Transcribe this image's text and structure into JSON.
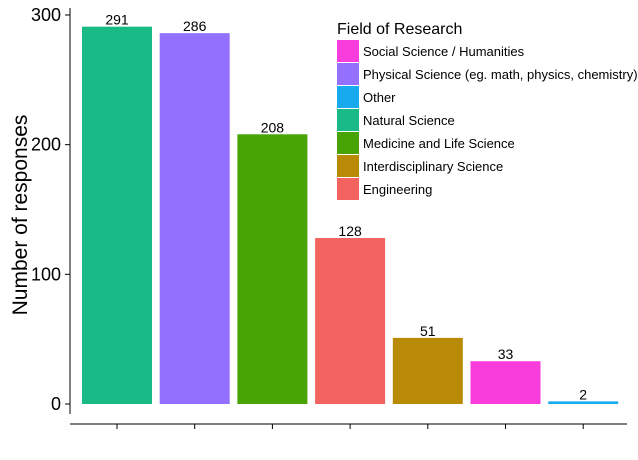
{
  "chart_data": {
    "type": "bar",
    "title": "",
    "xlabel": "",
    "ylabel": "Number of responses",
    "ylim": [
      0,
      300
    ],
    "yticks": [
      0,
      100,
      200,
      300
    ],
    "grid": false,
    "legend_title": "Field of Research",
    "legend_position": "top-right",
    "categories": [
      "Natural Science",
      "Physical Science (eg. math, physics, chemistry)",
      "Medicine and Life Science",
      "Engineering",
      "Interdisciplinary Science",
      "Social Science / Humanities",
      "Other"
    ],
    "values": [
      291,
      286,
      208,
      128,
      51,
      33,
      2
    ],
    "colors": [
      "#1aba87",
      "#9370fd",
      "#48a404",
      "#f36460",
      "#b98a05",
      "#f93ddd",
      "#18aaef"
    ],
    "data_labels": [
      "291",
      "286",
      "208",
      "128",
      "51",
      "33",
      "2"
    ],
    "legend": [
      {
        "label": "Social Science / Humanities",
        "color": "#f93ddd"
      },
      {
        "label": "Physical Science (eg. math, physics, chemistry)",
        "color": "#9370fd"
      },
      {
        "label": "Other",
        "color": "#18aaef"
      },
      {
        "label": "Natural Science",
        "color": "#1aba87"
      },
      {
        "label": "Medicine and Life Science",
        "color": "#48a404"
      },
      {
        "label": "Interdisciplinary Science",
        "color": "#b98a05"
      },
      {
        "label": "Engineering",
        "color": "#f36460"
      }
    ]
  }
}
